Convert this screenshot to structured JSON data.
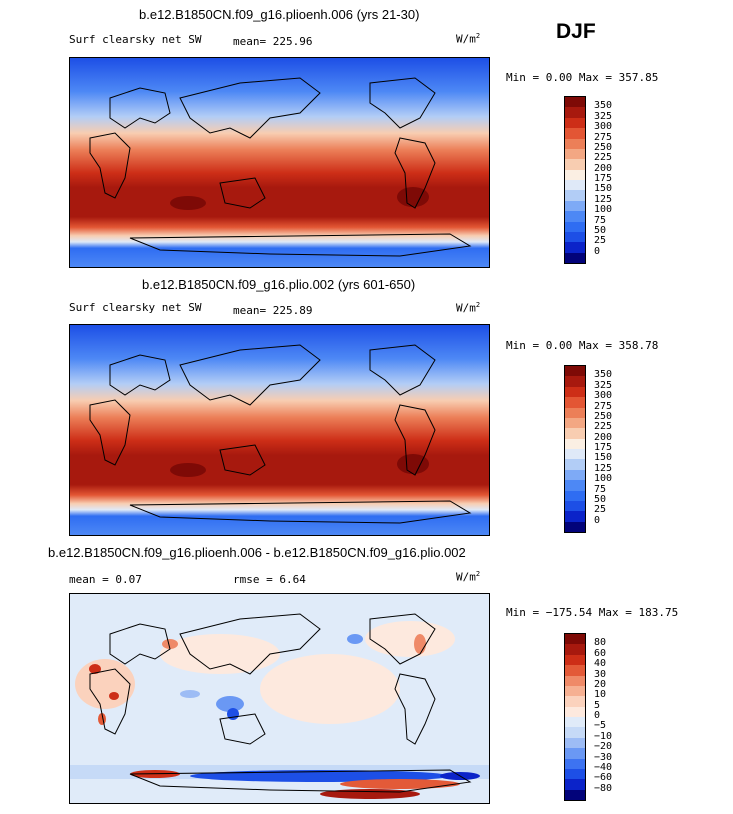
{
  "season": "DJF",
  "panels": [
    {
      "title": "b.e12.B1850CN.f09_g16.plioenh.006 (yrs 21-30)",
      "field": "Surf clearsky net SW",
      "mean_text": "mean= 225.96",
      "units_base": "W/m",
      "units_exp": "2",
      "minmax": "Min =   0.00 Max = 357.85"
    },
    {
      "title": "b.e12.B1850CN.f09_g16.plio.002 (yrs 601-650)",
      "field": "Surf clearsky net SW",
      "mean_text": "mean= 225.89",
      "units_base": "W/m",
      "units_exp": "2",
      "minmax": "Min =   0.00 Max = 358.78"
    },
    {
      "title": "b.e12.B1850CN.f09_g16.plioenh.006 - b.e12.B1850CN.f09_g16.plio.002",
      "mean_text": "mean =    0.07",
      "rmse_text": "rmse =    6.64",
      "units_base": "W/m",
      "units_exp": "2",
      "minmax": "Min = −175.54 Max = 183.75"
    }
  ],
  "chart_data": [
    {
      "type": "heatmap",
      "title": "b.e12.B1850CN.f09_g16.plioenh.006 (yrs 21-30)",
      "variable": "Surf clearsky net SW",
      "units": "W/m2",
      "mean": 225.96,
      "min": 0.0,
      "max": 357.85,
      "levels": [
        0,
        25,
        50,
        75,
        100,
        125,
        150,
        175,
        200,
        225,
        250,
        275,
        300,
        325,
        350
      ],
      "colors": [
        "#02037a",
        "#0b23c9",
        "#1d4fe6",
        "#2f6df2",
        "#4d88f5",
        "#7eaaf6",
        "#b2cdf6",
        "#dfe9f8",
        "#fbefe3",
        "#f8cdb1",
        "#f3a783",
        "#ec7f58",
        "#e35634",
        "#cd2e17",
        "#a7190e",
        "#7e0a06"
      ]
    },
    {
      "type": "heatmap",
      "title": "b.e12.B1850CN.f09_g16.plio.002 (yrs 601-650)",
      "variable": "Surf clearsky net SW",
      "units": "W/m2",
      "mean": 225.89,
      "min": 0.0,
      "max": 358.78,
      "levels": [
        0,
        25,
        50,
        75,
        100,
        125,
        150,
        175,
        200,
        225,
        250,
        275,
        300,
        325,
        350
      ],
      "colors": [
        "#02037a",
        "#0b23c9",
        "#1d4fe6",
        "#2f6df2",
        "#4d88f5",
        "#7eaaf6",
        "#b2cdf6",
        "#dfe9f8",
        "#fbefe3",
        "#f8cdb1",
        "#f3a783",
        "#ec7f58",
        "#e35634",
        "#cd2e17",
        "#a7190e",
        "#7e0a06"
      ]
    },
    {
      "type": "heatmap",
      "title": "b.e12.B1850CN.f09_g16.plioenh.006 - b.e12.B1850CN.f09_g16.plio.002",
      "variable": "difference",
      "units": "W/m2",
      "mean": 0.07,
      "rmse": 6.64,
      "min": -175.54,
      "max": 183.75,
      "levels": [
        -80,
        -60,
        -40,
        -30,
        -20,
        -10,
        -5,
        0,
        5,
        10,
        20,
        30,
        40,
        60,
        80
      ],
      "colors": [
        "#02037a",
        "#0b23c9",
        "#1d4fe6",
        "#3d73f1",
        "#6a98f4",
        "#9dbcf5",
        "#c6daf7",
        "#e0ebf9",
        "#fde9de",
        "#fbd2bd",
        "#f6b092",
        "#ef8a68",
        "#e35a38",
        "#cd2e17",
        "#a7190e",
        "#7e0a06"
      ]
    }
  ]
}
